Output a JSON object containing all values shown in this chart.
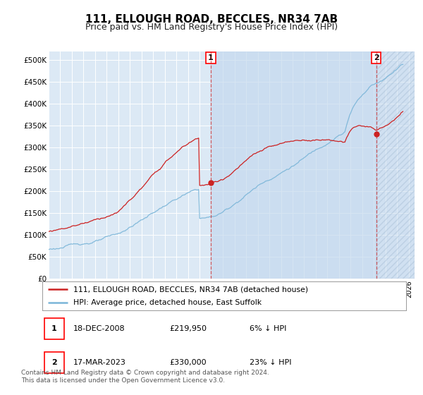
{
  "title": "111, ELLOUGH ROAD, BECCLES, NR34 7AB",
  "subtitle": "Price paid vs. HM Land Registry's House Price Index (HPI)",
  "title_fontsize": 11,
  "subtitle_fontsize": 9,
  "ylabel_ticks": [
    "£0",
    "£50K",
    "£100K",
    "£150K",
    "£200K",
    "£250K",
    "£300K",
    "£350K",
    "£400K",
    "£450K",
    "£500K"
  ],
  "ytick_values": [
    0,
    50000,
    100000,
    150000,
    200000,
    250000,
    300000,
    350000,
    400000,
    450000,
    500000
  ],
  "ylim": [
    0,
    520000
  ],
  "xlim_start": 1995.0,
  "xlim_end": 2026.5,
  "bg_light_blue": "#dce9f5",
  "bg_shaded": "#c8dff0",
  "hpi_color": "#7ab5d8",
  "price_color": "#cc2222",
  "sale1_t": 2008.96,
  "sale1_price": 219950,
  "sale2_t": 2023.21,
  "sale2_price": 330000,
  "legend_label1": "111, ELLOUGH ROAD, BECCLES, NR34 7AB (detached house)",
  "legend_label2": "HPI: Average price, detached house, East Suffolk",
  "table_row1": [
    "1",
    "18-DEC-2008",
    "£219,950",
    "6% ↓ HPI"
  ],
  "table_row2": [
    "2",
    "17-MAR-2023",
    "£330,000",
    "23% ↓ HPI"
  ],
  "footer": "Contains HM Land Registry data © Crown copyright and database right 2024.\nThis data is licensed under the Open Government Licence v3.0."
}
